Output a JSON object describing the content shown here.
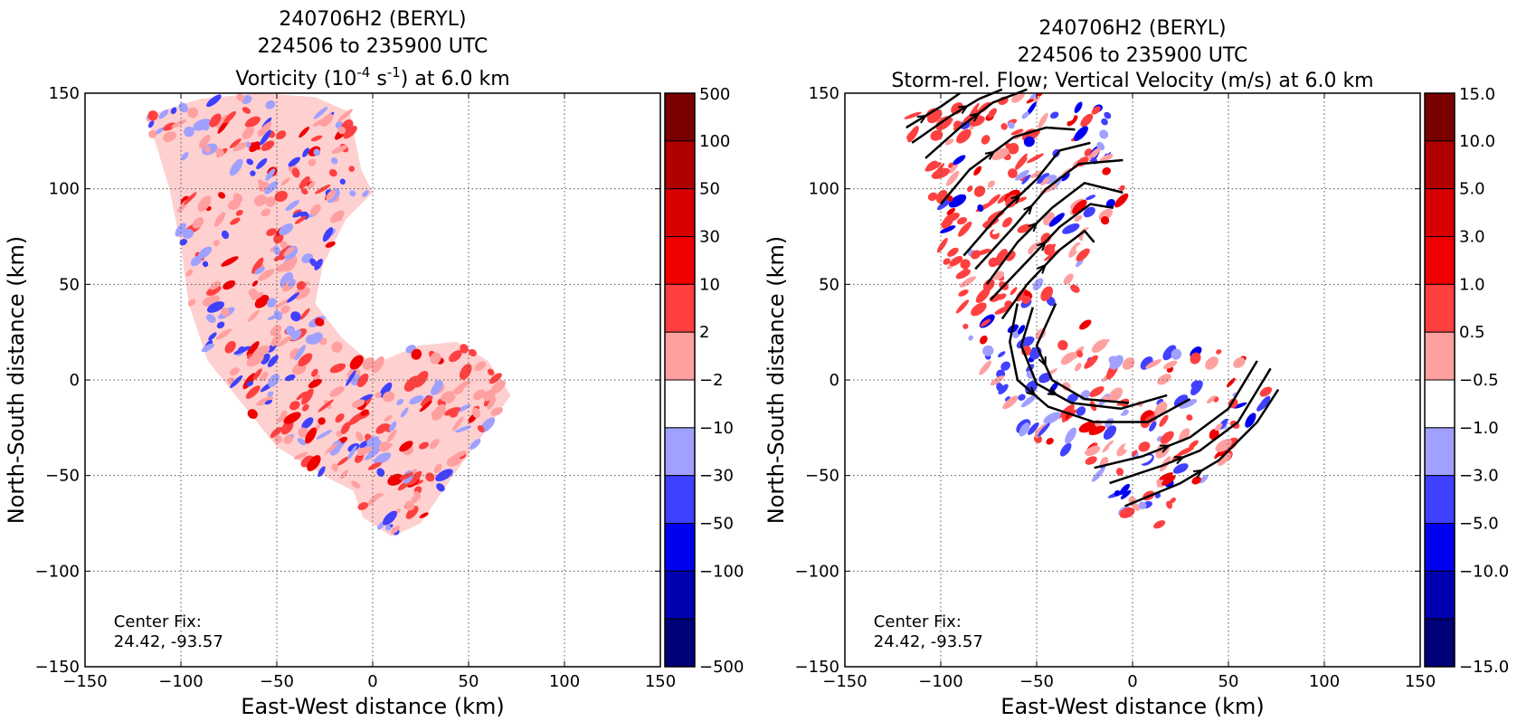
{
  "chart_data": [
    {
      "type": "heatmap",
      "title_lines": [
        "240706H2 (BERYL)",
        "224506 to 235900 UTC"
      ],
      "title_third": {
        "pre": "Vorticity (10",
        "sup1": "-4",
        "mid": " s",
        "sup2": "-1",
        "post": ") at 6.0 km"
      },
      "xlabel": "East-West distance (km)",
      "ylabel": "North-South distance (km)",
      "xlim": [
        -150,
        150
      ],
      "ylim": [
        -150,
        150
      ],
      "x_ticks": [
        "−150",
        "−100",
        "−50",
        "0",
        "50",
        "100",
        "150"
      ],
      "y_ticks": [
        "150",
        "100",
        "50",
        "0",
        "−50",
        "−100",
        "−150"
      ],
      "grid": true,
      "annotation": [
        "Center Fix:",
        "24.42, -93.57"
      ],
      "colorbar": {
        "levels": [
          "500",
          "100",
          "50",
          "30",
          "10",
          "2",
          "−2",
          "−10",
          "−30",
          "−50",
          "−100",
          "−500"
        ],
        "colors": [
          "#7a0000",
          "#b00000",
          "#d80000",
          "#f00000",
          "#ff4040",
          "#ffa0a0",
          "#ffffff",
          "#a0a0ff",
          "#4040ff",
          "#0000f0",
          "#0000b0",
          "#000078"
        ]
      }
    },
    {
      "type": "heatmap",
      "title_lines": [
        "240706H2 (BERYL)",
        "224506 to 235900 UTC",
        "Storm-rel. Flow; Vertical Velocity (m/s) at 6.0 km"
      ],
      "xlabel": "East-West distance (km)",
      "ylabel": "North-South distance (km)",
      "xlim": [
        -150,
        150
      ],
      "ylim": [
        -150,
        150
      ],
      "x_ticks": [
        "−150",
        "−100",
        "−50",
        "0",
        "50",
        "100",
        "150"
      ],
      "y_ticks": [
        "150",
        "100",
        "50",
        "0",
        "−50",
        "−100",
        "−150"
      ],
      "grid": true,
      "annotation": [
        "Center Fix:",
        "24.42, -93.57"
      ],
      "colorbar": {
        "levels": [
          "15.0",
          "10.0",
          "5.0",
          "3.0",
          "1.0",
          "0.5",
          "−0.5",
          "−1.0",
          "−3.0",
          "−5.0",
          "−10.0",
          "−15.0"
        ],
        "colors": [
          "#7a0000",
          "#b00000",
          "#d80000",
          "#f00000",
          "#ff4040",
          "#ffa0a0",
          "#ffffff",
          "#a0a0ff",
          "#4040ff",
          "#0000f0",
          "#0000b0",
          "#000078"
        ]
      },
      "streamlines": [
        [
          [
            -118,
            132
          ],
          [
            -100,
            143
          ],
          [
            -90,
            150
          ]
        ],
        [
          [
            -115,
            124
          ],
          [
            -95,
            138
          ],
          [
            -80,
            147
          ],
          [
            -68,
            152
          ]
        ],
        [
          [
            -108,
            116
          ],
          [
            -90,
            132
          ],
          [
            -73,
            145
          ],
          [
            -55,
            152
          ]
        ],
        [
          [
            -100,
            92
          ],
          [
            -85,
            110
          ],
          [
            -62,
            127
          ],
          [
            -45,
            132
          ],
          [
            -30,
            131
          ]
        ],
        [
          [
            -88,
            65
          ],
          [
            -70,
            86
          ],
          [
            -50,
            105
          ],
          [
            -38,
            120
          ],
          [
            -22,
            124
          ]
        ],
        [
          [
            -82,
            58
          ],
          [
            -62,
            80
          ],
          [
            -45,
            100
          ],
          [
            -28,
            113
          ],
          [
            -5,
            115
          ]
        ],
        [
          [
            -76,
            50
          ],
          [
            -60,
            72
          ],
          [
            -42,
            90
          ],
          [
            -25,
            103
          ],
          [
            -5,
            98
          ]
        ],
        [
          [
            -74,
            42
          ],
          [
            -55,
            62
          ],
          [
            -38,
            80
          ],
          [
            -22,
            92
          ],
          [
            -10,
            90
          ]
        ],
        [
          [
            -68,
            32
          ],
          [
            -55,
            50
          ],
          [
            -38,
            68
          ],
          [
            -25,
            78
          ],
          [
            -20,
            72
          ]
        ],
        [
          [
            -60,
            40
          ],
          [
            -64,
            20
          ],
          [
            -60,
            0
          ],
          [
            -44,
            -14
          ],
          [
            -20,
            -22
          ],
          [
            8,
            -22
          ],
          [
            30,
            -10
          ]
        ],
        [
          [
            -52,
            38
          ],
          [
            -58,
            18
          ],
          [
            -50,
            -2
          ],
          [
            -32,
            -12
          ],
          [
            -6,
            -15
          ],
          [
            18,
            -8
          ]
        ],
        [
          [
            -40,
            40
          ],
          [
            -50,
            18
          ],
          [
            -42,
            0
          ],
          [
            -25,
            -10
          ],
          [
            -2,
            -12
          ]
        ],
        [
          [
            -20,
            -46
          ],
          [
            5,
            -40
          ],
          [
            30,
            -30
          ],
          [
            50,
            -15
          ],
          [
            65,
            10
          ]
        ],
        [
          [
            -12,
            -54
          ],
          [
            15,
            -45
          ],
          [
            35,
            -37
          ],
          [
            55,
            -22
          ],
          [
            72,
            6
          ]
        ],
        [
          [
            -4,
            -66
          ],
          [
            25,
            -54
          ],
          [
            45,
            -42
          ],
          [
            65,
            -22
          ],
          [
            76,
            -5
          ]
        ]
      ]
    }
  ]
}
